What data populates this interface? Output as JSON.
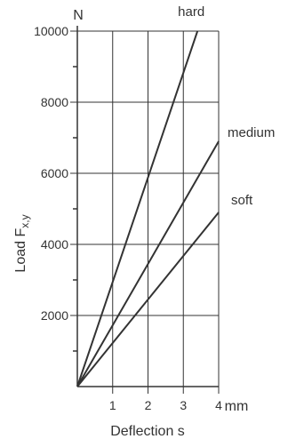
{
  "chart_data": {
    "type": "line",
    "title": "",
    "xlabel": "Deflection s",
    "ylabel_main": "Load F",
    "ylabel_sub": "x,y",
    "x_unit": "mm",
    "y_unit": "N",
    "xlim": [
      0,
      4
    ],
    "ylim": [
      0,
      10000
    ],
    "x_ticks": [
      1,
      2,
      3,
      4
    ],
    "x_tick_labels": [
      "1",
      "2",
      "3",
      "4"
    ],
    "y_ticks": [
      2000,
      4000,
      6000,
      8000,
      10000
    ],
    "y_tick_labels": [
      "2000",
      "4000",
      "6000",
      "8000",
      "10000"
    ],
    "y_minor_ticks": [
      1000,
      3000,
      5000,
      7000,
      9000
    ],
    "grid": true,
    "series": [
      {
        "name": "hard",
        "x": [
          0,
          3.4
        ],
        "y": [
          0,
          10000
        ]
      },
      {
        "name": "medium",
        "x": [
          0,
          4
        ],
        "y": [
          0,
          6900
        ]
      },
      {
        "name": "soft",
        "x": [
          0,
          4
        ],
        "y": [
          0,
          4900
        ]
      }
    ],
    "colors": {
      "line": "#333333",
      "grid": "#333333",
      "text": "#333333"
    }
  }
}
